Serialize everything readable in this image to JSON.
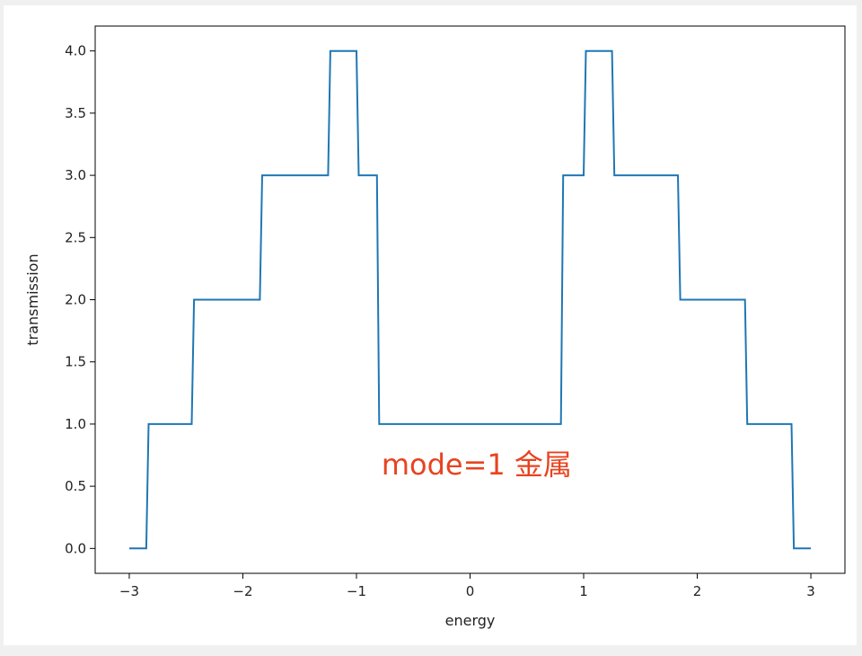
{
  "chart_data": {
    "type": "line",
    "xlabel": "energy",
    "ylabel": "transmission",
    "xlim": [
      -3.3,
      3.3
    ],
    "ylim": [
      -0.2,
      4.2
    ],
    "xticks": [
      -3,
      -2,
      -1,
      0,
      1,
      2,
      3
    ],
    "xtick_labels": [
      "−3",
      "−2",
      "−1",
      "0",
      "1",
      "2",
      "3"
    ],
    "yticks": [
      0.0,
      0.5,
      1.0,
      1.5,
      2.0,
      2.5,
      3.0,
      3.5,
      4.0
    ],
    "ytick_labels": [
      "0.0",
      "0.5",
      "1.0",
      "1.5",
      "2.0",
      "2.5",
      "3.0",
      "3.5",
      "4.0"
    ],
    "grid": false,
    "series": [
      {
        "color": "#1f77b4",
        "x": [
          -3.0,
          -2.85,
          -2.83,
          -2.45,
          -2.43,
          -1.85,
          -1.83,
          -1.25,
          -1.23,
          -1.0,
          -0.98,
          -0.82,
          -0.8,
          0.8,
          0.82,
          1.0,
          1.02,
          1.25,
          1.27,
          1.83,
          1.85,
          2.42,
          2.44,
          2.83,
          2.85,
          3.0
        ],
        "y": [
          0,
          0,
          1,
          1,
          2,
          2,
          3,
          3,
          4,
          4,
          3,
          3,
          1,
          1,
          3,
          3,
          4,
          4,
          3,
          3,
          2,
          2,
          1,
          1,
          0,
          0
        ]
      }
    ],
    "annotation": {
      "text": "mode=1 金属",
      "x": -0.78,
      "y": 0.68,
      "color": "#e8431f"
    }
  }
}
